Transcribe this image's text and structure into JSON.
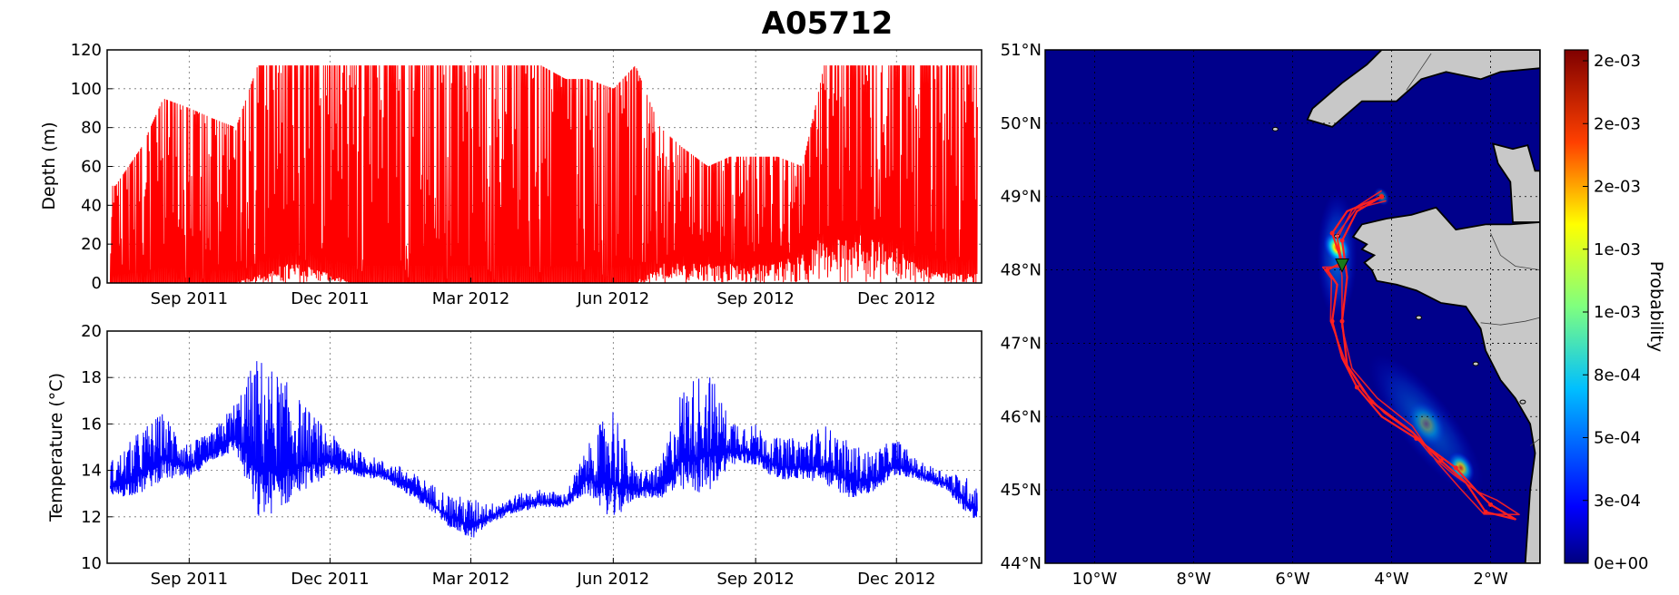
{
  "title": "A05712",
  "chart_data": [
    {
      "type": "line",
      "name": "depth-panel",
      "ylabel": "Depth (m)",
      "ylim": [
        120,
        0
      ],
      "y_ticks": [
        "0",
        "20",
        "40",
        "60",
        "80",
        "100",
        "120"
      ],
      "x_ticks": [
        "Sep 2011",
        "Dec 2011",
        "Mar 2012",
        "Jun 2012",
        "Sep 2012",
        "Dec 2012"
      ],
      "xlim": [
        "2011-07-10",
        "2013-01-25"
      ],
      "grid": true,
      "color": "#ff0000",
      "x": [
        "2011-07-15",
        "2011-08-01",
        "2011-08-15",
        "2011-09-01",
        "2011-09-15",
        "2011-10-01",
        "2011-10-15",
        "2011-11-01",
        "2011-11-15",
        "2011-12-01",
        "2011-12-15",
        "2012-01-01",
        "2012-01-15",
        "2012-02-01",
        "2012-02-15",
        "2012-03-01",
        "2012-03-15",
        "2012-04-01",
        "2012-04-15",
        "2012-05-01",
        "2012-05-15",
        "2012-06-01",
        "2012-06-15",
        "2012-07-01",
        "2012-07-15",
        "2012-08-01",
        "2012-08-15",
        "2012-09-01",
        "2012-09-15",
        "2012-10-01",
        "2012-10-15",
        "2012-11-01",
        "2012-11-15",
        "2012-12-01",
        "2012-12-15",
        "2013-01-01",
        "2013-01-20"
      ],
      "max_depth": [
        50,
        70,
        95,
        90,
        85,
        80,
        112,
        112,
        112,
        112,
        112,
        112,
        112,
        112,
        112,
        112,
        112,
        112,
        112,
        105,
        105,
        100,
        112,
        80,
        70,
        60,
        65,
        65,
        65,
        60,
        112,
        112,
        112,
        112,
        112,
        112,
        112
      ],
      "min_depth": [
        0,
        0,
        0,
        0,
        0,
        0,
        5,
        10,
        10,
        5,
        0,
        0,
        0,
        0,
        0,
        0,
        0,
        0,
        0,
        0,
        0,
        0,
        0,
        10,
        10,
        10,
        10,
        10,
        10,
        20,
        25,
        25,
        25,
        20,
        10,
        5,
        5
      ]
    },
    {
      "type": "line",
      "name": "temperature-panel",
      "ylabel": "Temperature (°C)",
      "ylim": [
        10,
        20
      ],
      "y_ticks": [
        "10",
        "12",
        "14",
        "16",
        "18",
        "20"
      ],
      "x_ticks": [
        "Sep 2011",
        "Dec 2011",
        "Mar 2012",
        "Jun 2012",
        "Sep 2012",
        "Dec 2012"
      ],
      "xlim": [
        "2011-07-10",
        "2013-01-25"
      ],
      "grid": true,
      "color": "#0000ff",
      "x": [
        "2011-07-15",
        "2011-08-01",
        "2011-08-15",
        "2011-09-01",
        "2011-09-15",
        "2011-10-01",
        "2011-10-15",
        "2011-11-01",
        "2011-11-15",
        "2011-12-01",
        "2011-12-15",
        "2012-01-01",
        "2012-01-15",
        "2012-02-01",
        "2012-02-15",
        "2012-03-01",
        "2012-03-15",
        "2012-04-01",
        "2012-04-15",
        "2012-05-01",
        "2012-05-15",
        "2012-06-01",
        "2012-06-15",
        "2012-07-01",
        "2012-07-15",
        "2012-08-01",
        "2012-08-15",
        "2012-09-01",
        "2012-09-15",
        "2012-10-01",
        "2012-10-15",
        "2012-11-01",
        "2012-11-15",
        "2012-12-01",
        "2012-12-15",
        "2013-01-01",
        "2013-01-20"
      ],
      "temp_high": [
        14.5,
        15.8,
        16.5,
        15.2,
        15.6,
        17.0,
        19.0,
        18.0,
        16.8,
        15.6,
        15.0,
        14.5,
        14.2,
        13.6,
        13.0,
        12.8,
        12.6,
        13.0,
        13.2,
        13.0,
        15.0,
        17.0,
        14.0,
        14.2,
        17.6,
        18.5,
        16.3,
        16.0,
        15.4,
        15.4,
        16.0,
        15.2,
        14.8,
        15.4,
        14.4,
        14.0,
        13.6
      ],
      "temp_low": [
        12.8,
        13.0,
        13.6,
        13.6,
        14.4,
        14.8,
        11.8,
        12.4,
        13.2,
        13.8,
        13.8,
        13.6,
        13.2,
        12.4,
        11.6,
        11.0,
        11.8,
        12.2,
        12.4,
        12.4,
        13.0,
        11.8,
        12.8,
        12.8,
        13.0,
        13.0,
        14.2,
        14.2,
        13.6,
        13.6,
        13.4,
        12.8,
        13.0,
        13.8,
        13.6,
        13.2,
        11.8
      ]
    },
    {
      "type": "heatmap",
      "name": "probability-map",
      "x_ticks": [
        "10°W",
        "8°W",
        "6°W",
        "4°W",
        "2°W"
      ],
      "y_ticks": [
        "44°N",
        "45°N",
        "46°N",
        "47°N",
        "48°N",
        "49°N",
        "50°N",
        "51°N"
      ],
      "xlim": [
        -11.0,
        -1.0
      ],
      "ylim": [
        44.0,
        51.0
      ],
      "grid": true,
      "colorbar_label": "Probability",
      "colorbar_ticks": [
        "0e+00",
        "3e-04",
        "5e-04",
        "8e-04",
        "1e-03",
        "1e-03",
        "2e-03",
        "2e-03",
        "2e-03"
      ],
      "colormap": [
        "#00007f",
        "#0000ff",
        "#007fff",
        "#00ffff",
        "#7fff7f",
        "#ffff00",
        "#ff7f00",
        "#ff0000",
        "#7f0000"
      ],
      "ocean_color": "#00008b",
      "land_color": "#c8c8c8",
      "hotspots": [
        {
          "lon": -5.1,
          "lat": 48.3,
          "intensity": 1.0,
          "spread": 0.35
        },
        {
          "lon": -2.6,
          "lat": 45.3,
          "intensity": 0.75,
          "spread": 0.35
        },
        {
          "lon": -3.3,
          "lat": 45.9,
          "intensity": 0.35,
          "spread": 0.5
        },
        {
          "lon": -4.2,
          "lat": 49.0,
          "intensity": 0.4,
          "spread": 0.2
        }
      ],
      "track_color": "#ff2020",
      "track": [
        [
          -4.2,
          49.0
        ],
        [
          -4.9,
          48.8
        ],
        [
          -5.2,
          48.5
        ],
        [
          -5.0,
          48.1
        ],
        [
          -5.3,
          48.0
        ],
        [
          -5.1,
          47.8
        ],
        [
          -5.2,
          47.3
        ],
        [
          -5.0,
          46.8
        ],
        [
          -4.7,
          46.4
        ],
        [
          -4.2,
          46.0
        ],
        [
          -3.5,
          45.7
        ],
        [
          -3.1,
          45.5
        ],
        [
          -2.7,
          45.3
        ],
        [
          -2.3,
          45.0
        ],
        [
          -2.0,
          44.8
        ],
        [
          -1.5,
          44.6
        ],
        [
          -2.1,
          44.7
        ],
        [
          -2.5,
          45.1
        ],
        [
          -3.0,
          45.4
        ],
        [
          -3.6,
          45.8
        ],
        [
          -4.4,
          46.2
        ],
        [
          -4.9,
          46.7
        ],
        [
          -5.0,
          47.3
        ],
        [
          -4.9,
          47.9
        ],
        [
          -5.0,
          48.4
        ],
        [
          -4.7,
          48.8
        ],
        [
          -4.2,
          49.0
        ]
      ],
      "start_marker": {
        "lon": -5.0,
        "lat": 48.05,
        "color": "#1a7a1a"
      }
    }
  ]
}
